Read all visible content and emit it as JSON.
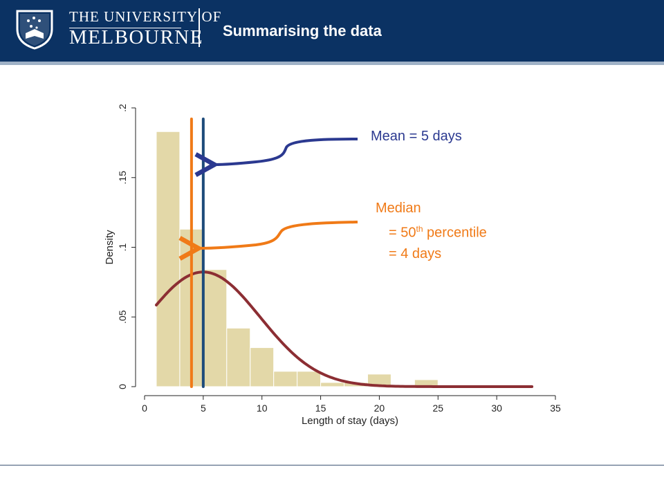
{
  "header": {
    "university_line1": "THE UNIVERSITY OF",
    "university_line2": "MELBOURNE",
    "title": "Summarising the data",
    "crest_icon": "university-crest-icon",
    "background_color": "#0b3263"
  },
  "annotations": {
    "mean_text": "Mean = 5 days",
    "mean_color": "#2b3990",
    "median_line1": "Median",
    "median_line2_prefix": "= 50",
    "median_line2_sup": "th",
    "median_line2_suffix": " percentile",
    "median_line3": "= 4 days",
    "median_color": "#f07a17"
  },
  "chart_data": {
    "type": "bar",
    "xlabel": "Length of stay (days)",
    "ylabel": "Density",
    "xlim": [
      0,
      35
    ],
    "ylim": [
      0,
      0.2
    ],
    "xticks": [
      0,
      5,
      10,
      15,
      20,
      25,
      30,
      35
    ],
    "xtick_labels": [
      "0",
      "5",
      "10",
      "15",
      "20",
      "25",
      "30",
      "35"
    ],
    "yticks": [
      0,
      0.05,
      0.1,
      0.15,
      0.2
    ],
    "ytick_labels": [
      "0",
      ".05",
      ".1",
      ".15",
      ".2"
    ],
    "grid": false,
    "bins": [
      {
        "x0": 1,
        "x1": 3,
        "density": 0.183
      },
      {
        "x0": 3,
        "x1": 5,
        "density": 0.113
      },
      {
        "x0": 5,
        "x1": 7,
        "density": 0.084
      },
      {
        "x0": 7,
        "x1": 9,
        "density": 0.042
      },
      {
        "x0": 9,
        "x1": 11,
        "density": 0.028
      },
      {
        "x0": 11,
        "x1": 13,
        "density": 0.011
      },
      {
        "x0": 13,
        "x1": 15,
        "density": 0.011
      },
      {
        "x0": 15,
        "x1": 17,
        "density": 0.003
      },
      {
        "x0": 17,
        "x1": 19,
        "density": 0.003
      },
      {
        "x0": 19,
        "x1": 21,
        "density": 0.009
      },
      {
        "x0": 21,
        "x1": 23,
        "density": 0.001
      },
      {
        "x0": 23,
        "x1": 25,
        "density": 0.005
      },
      {
        "x0": 25,
        "x1": 27,
        "density": 0.0
      },
      {
        "x0": 27,
        "x1": 29,
        "density": 0.0
      },
      {
        "x0": 29,
        "x1": 31,
        "density": 0.0
      },
      {
        "x0": 31,
        "x1": 33,
        "density": 0.001
      }
    ],
    "bar_color": "#e3d8a8",
    "normal_curve": {
      "mean": 5,
      "sd": 4.85,
      "from": 1,
      "to": 33,
      "color": "#8c2e33"
    },
    "reference_lines": [
      {
        "label": "median",
        "x": 4,
        "color": "#f07a17"
      },
      {
        "label": "mean",
        "x": 5,
        "color": "#1e4b7a"
      }
    ]
  }
}
